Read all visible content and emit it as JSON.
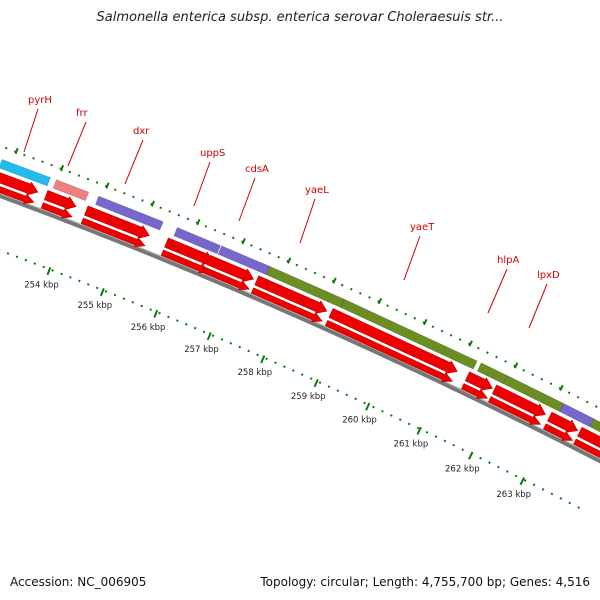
{
  "title": "Salmonella enterica subsp. enterica serovar Choleraesuis str...",
  "colors": {
    "backbone": "#888888",
    "cds_strand": "#ee0000",
    "label": "#d10000",
    "tick": "#0a7a0a",
    "legend_cyan": "#22bbee",
    "legend_pink": "#f08080",
    "legend_purple": "#7766cc",
    "legend_olive": "#6b8e23"
  },
  "genes": [
    {
      "name": "pyrH"
    },
    {
      "name": "frr"
    },
    {
      "name": "dxr"
    },
    {
      "name": "uppS"
    },
    {
      "name": "cdsA"
    },
    {
      "name": "yaeL"
    },
    {
      "name": "yaeT"
    },
    {
      "name": "hlpA"
    },
    {
      "name": "lpxD"
    }
  ],
  "kbp_ticks": [
    "254 kbp",
    "255 kbp",
    "256 kbp",
    "257 kbp",
    "258 kbp",
    "259 kbp",
    "260 kbp",
    "261 kbp",
    "262 kbp",
    "263 kbp"
  ],
  "footer": {
    "accession": "Accession: NC_006905",
    "summary": "Topology: circular; Length: 4,755,700 bp; Genes: 4,516"
  }
}
